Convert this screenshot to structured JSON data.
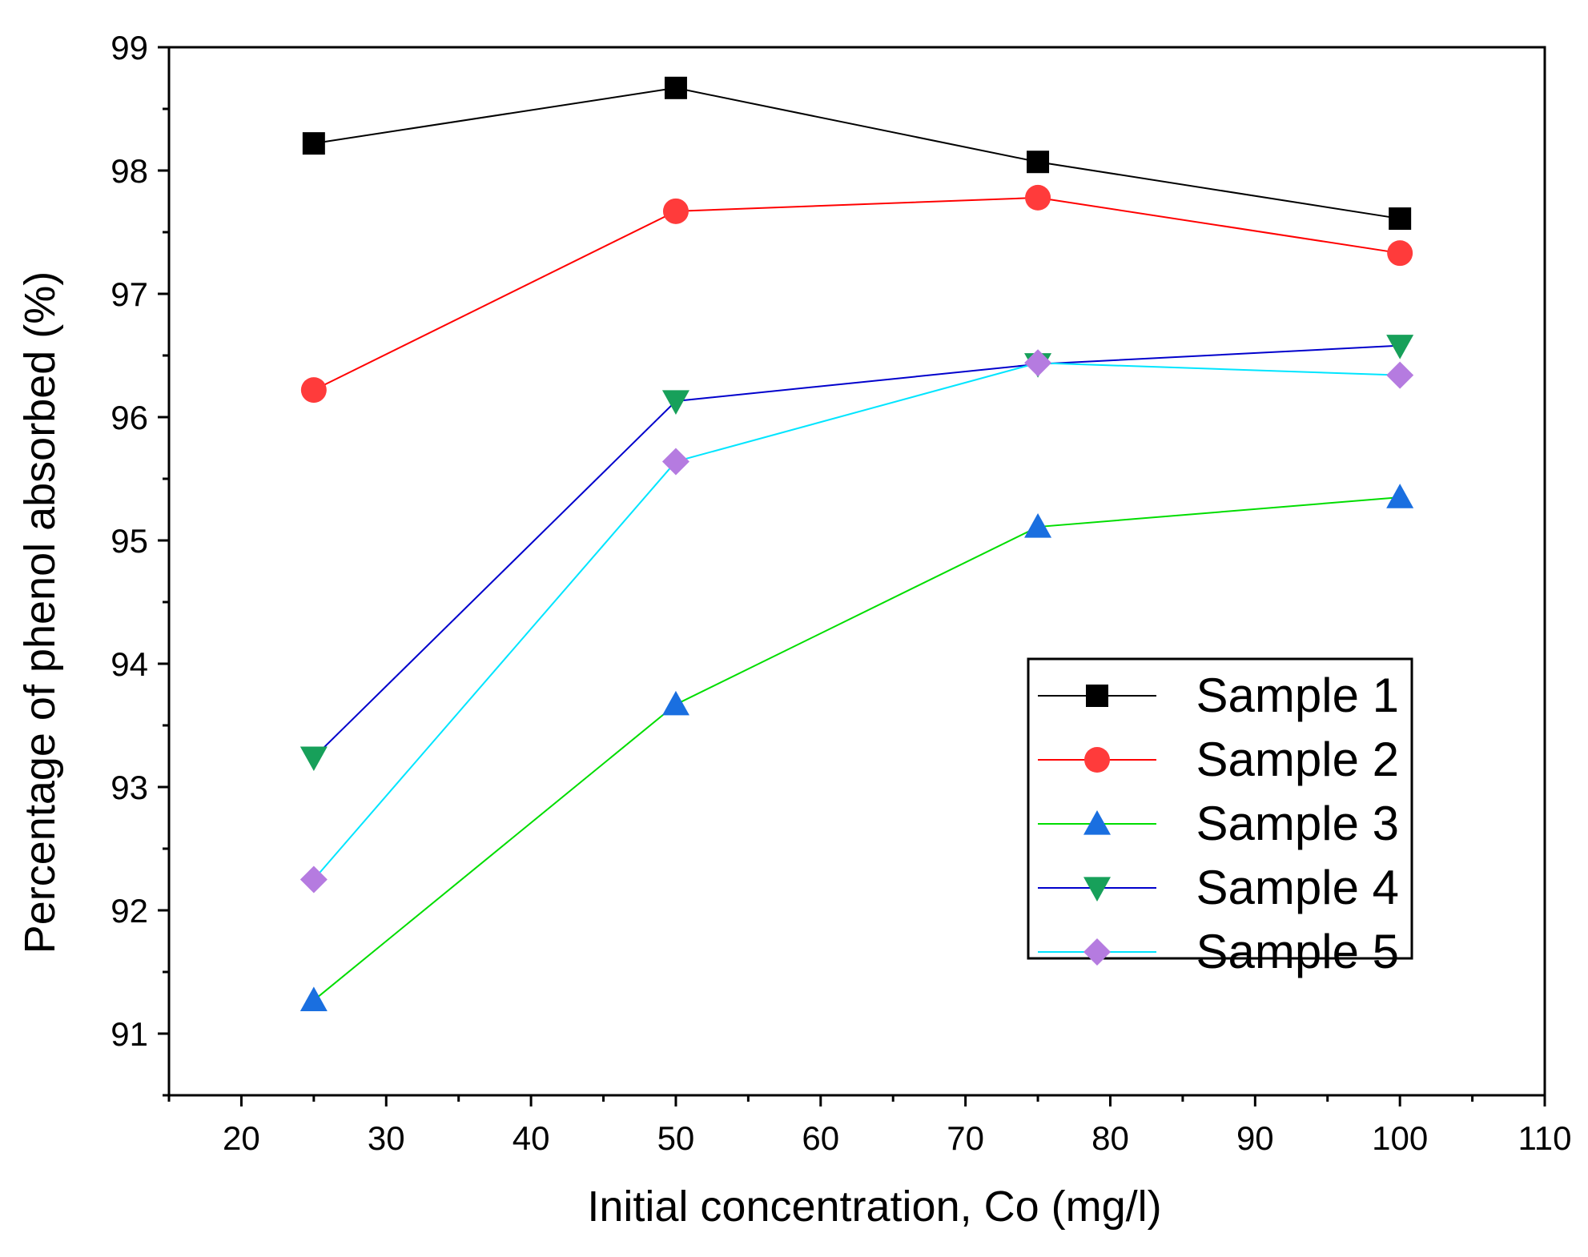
{
  "chart_data": {
    "type": "line",
    "title": "",
    "xlabel": "Initial concentration, Co (mg/l)",
    "ylabel": "Percentage of phenol absorbed (%)",
    "xlim": [
      15,
      110
    ],
    "ylim": [
      90.5,
      99
    ],
    "x_ticks": [
      20,
      30,
      40,
      50,
      60,
      70,
      80,
      90,
      100,
      110
    ],
    "y_ticks": [
      91,
      92,
      93,
      94,
      95,
      96,
      97,
      98,
      99
    ],
    "x_tick_labels": [
      "20",
      "30",
      "40",
      "50",
      "60",
      "70",
      "80",
      "90",
      "100",
      "110"
    ],
    "y_tick_labels": [
      "91",
      "92",
      "93",
      "94",
      "95",
      "96",
      "97",
      "98",
      "99"
    ],
    "grid": false,
    "legend_position": "lower-right",
    "x": [
      25,
      50,
      75,
      100
    ],
    "series": [
      {
        "name": "Sample 1",
        "values": [
          98.22,
          98.67,
          98.07,
          97.61
        ],
        "line_color": "#000000",
        "marker": "square",
        "marker_color": "#000000"
      },
      {
        "name": "Sample 2",
        "values": [
          96.22,
          97.67,
          97.78,
          97.33
        ],
        "line_color": "#ff0000",
        "marker": "circle",
        "marker_color": "#ff3b3b"
      },
      {
        "name": "Sample 3",
        "values": [
          91.27,
          93.67,
          95.11,
          95.35
        ],
        "line_color": "#00dd00",
        "marker": "triangle-up",
        "marker_color": "#1a6fe0"
      },
      {
        "name": "Sample 4",
        "values": [
          93.24,
          96.13,
          96.43,
          96.58
        ],
        "line_color": "#0000cc",
        "marker": "triangle-down",
        "marker_color": "#17a05a"
      },
      {
        "name": "Sample 5",
        "values": [
          92.25,
          95.64,
          96.44,
          96.34
        ],
        "line_color": "#00e5ff",
        "marker": "diamond",
        "marker_color": "#b57be0"
      }
    ]
  }
}
